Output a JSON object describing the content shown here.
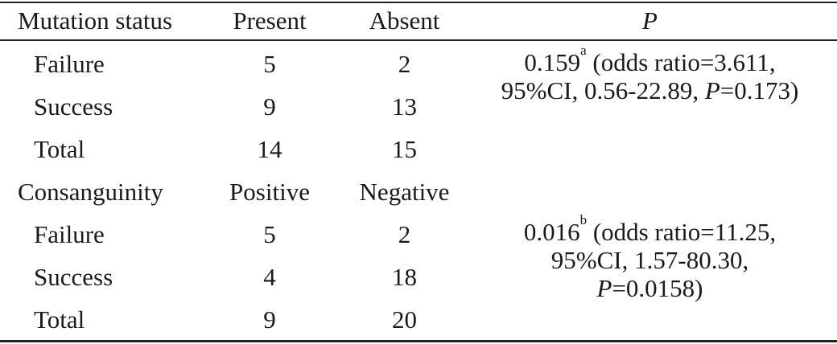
{
  "header": {
    "col1": "Mutation status",
    "col2": "Present",
    "col3": "Absent",
    "col4": "P"
  },
  "group1": {
    "rows": [
      {
        "label": "Failure",
        "a": "5",
        "b": "2"
      },
      {
        "label": "Success",
        "a": "9",
        "b": "13"
      },
      {
        "label": "Total",
        "a": "14",
        "b": "15"
      }
    ],
    "p_value": "0.159",
    "p_sup": "a",
    "p_line1_rest": " (odds ratio=3.611,",
    "p_line2_pre": "95%CI, 0.56-22.89, ",
    "p_line2_italic": "P",
    "p_line2_post": "=0.173)"
  },
  "group2": {
    "header": {
      "col1": "Consanguinity",
      "col2": "Positive",
      "col3": "Negative"
    },
    "rows": [
      {
        "label": "Failure",
        "a": "5",
        "b": "2"
      },
      {
        "label": "Success",
        "a": "4",
        "b": "18"
      },
      {
        "label": "Total",
        "a": "9",
        "b": "20"
      }
    ],
    "p_value": "0.016",
    "p_sup": "b",
    "p_line1_rest": " (odds ratio=11.25,",
    "p_line2": "95%CI, 1.57-80.30,",
    "p_line3_italic": "P",
    "p_line3_post": "=0.0158)"
  }
}
